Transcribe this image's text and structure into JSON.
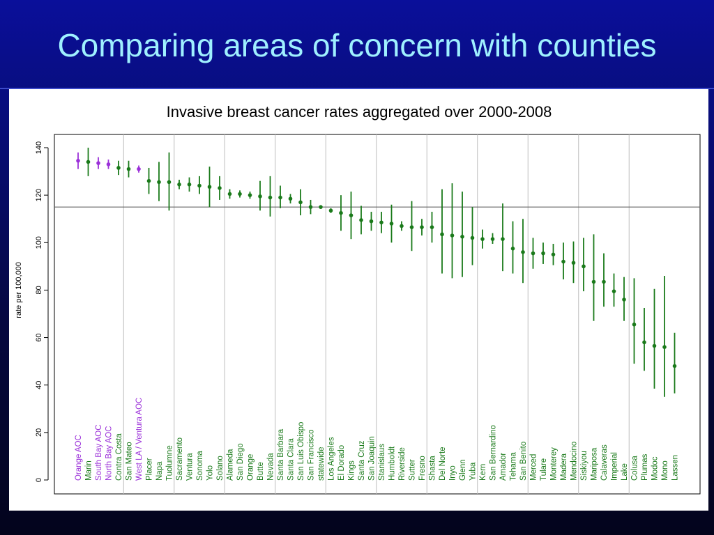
{
  "slide": {
    "title": "Comparing areas of concern with counties"
  },
  "colors": {
    "county": "#1a7a1a",
    "aoc": "#9b30d9",
    "reference_line": "#606060",
    "gridline": "#bdbdbd"
  },
  "chart_data": {
    "type": "scatter",
    "title": "Invasive breast cancer rates aggregated over 2000-2008",
    "xlabel": "",
    "ylabel": "rate per 100,000",
    "ylim": [
      0,
      140
    ],
    "yticks": [
      0,
      20,
      40,
      60,
      80,
      100,
      120,
      140
    ],
    "reference_line_y": 115,
    "grid": "vertical separators between groups",
    "series": [
      {
        "name": "",
        "points": [
          {
            "label": "Orange AOC",
            "y": 134.5,
            "lo": 131,
            "hi": 138,
            "type": "aoc"
          },
          {
            "label": "Marin",
            "y": 134,
            "lo": 128,
            "hi": 140,
            "type": "county"
          },
          {
            "label": "South Bay AOC",
            "y": 133.5,
            "lo": 131,
            "hi": 136,
            "type": "aoc"
          },
          {
            "label": "North Bay AOC",
            "y": 133,
            "lo": 131,
            "hi": 135,
            "type": "aoc"
          },
          {
            "label": "Contra Costa",
            "y": 131.5,
            "lo": 128.5,
            "hi": 134.5,
            "type": "county"
          },
          {
            "label": "San Mateo",
            "y": 131,
            "lo": 127.5,
            "hi": 134.5,
            "type": "county"
          },
          {
            "label": "West LA / Ventura AOC",
            "y": 131,
            "lo": 129.5,
            "hi": 132.5,
            "type": "aoc"
          },
          {
            "label": "Placer",
            "y": 126,
            "lo": 120.5,
            "hi": 131.5,
            "type": "county"
          },
          {
            "label": "Napa",
            "y": 125.5,
            "lo": 117.5,
            "hi": 134,
            "type": "county"
          },
          {
            "label": "Tuolumne",
            "y": 125.5,
            "lo": 113.5,
            "hi": 138,
            "type": "county"
          },
          {
            "label": "Sacramento",
            "y": 124.5,
            "lo": 122.5,
            "hi": 126.5,
            "type": "county"
          },
          {
            "label": "Ventura",
            "y": 124.5,
            "lo": 121.5,
            "hi": 127.5,
            "type": "county"
          },
          {
            "label": "Sonoma",
            "y": 124,
            "lo": 120.5,
            "hi": 128,
            "type": "county"
          },
          {
            "label": "Yolo",
            "y": 123.5,
            "lo": 115,
            "hi": 132,
            "type": "county"
          },
          {
            "label": "Solano",
            "y": 123,
            "lo": 118,
            "hi": 128,
            "type": "county"
          },
          {
            "label": "Alameda",
            "y": 120.5,
            "lo": 118.5,
            "hi": 122.5,
            "type": "county"
          },
          {
            "label": "San Diego",
            "y": 120.5,
            "lo": 119,
            "hi": 122,
            "type": "county"
          },
          {
            "label": "Orange",
            "y": 120,
            "lo": 118.5,
            "hi": 121.5,
            "type": "county"
          },
          {
            "label": "Butte",
            "y": 119.5,
            "lo": 113.5,
            "hi": 126,
            "type": "county"
          },
          {
            "label": "Nevada",
            "y": 119,
            "lo": 111,
            "hi": 128,
            "type": "county"
          },
          {
            "label": "Santa Barbara",
            "y": 119,
            "lo": 114.5,
            "hi": 124,
            "type": "county"
          },
          {
            "label": "Santa Clara",
            "y": 118.5,
            "lo": 116.5,
            "hi": 120.5,
            "type": "county"
          },
          {
            "label": "San Luis Obispo",
            "y": 117,
            "lo": 111.5,
            "hi": 122.5,
            "type": "county"
          },
          {
            "label": "San Francisco",
            "y": 115,
            "lo": 112,
            "hi": 118,
            "type": "county"
          },
          {
            "label": "statewide",
            "y": 115,
            "lo": 114.5,
            "hi": 115.5,
            "type": "county"
          },
          {
            "label": "Los Angeles",
            "y": 113.5,
            "lo": 112.5,
            "hi": 114.5,
            "type": "county"
          },
          {
            "label": "El Dorado",
            "y": 112.5,
            "lo": 105,
            "hi": 120,
            "type": "county"
          },
          {
            "label": "Kings",
            "y": 111.5,
            "lo": 101.5,
            "hi": 121.5,
            "type": "county"
          },
          {
            "label": "Santa Cruz",
            "y": 109.5,
            "lo": 103.5,
            "hi": 115.5,
            "type": "county"
          },
          {
            "label": "San Joaquin",
            "y": 109,
            "lo": 105,
            "hi": 113,
            "type": "county"
          },
          {
            "label": "Stanislaus",
            "y": 108.5,
            "lo": 104,
            "hi": 113,
            "type": "county"
          },
          {
            "label": "Humboldt",
            "y": 108,
            "lo": 100,
            "hi": 116,
            "type": "county"
          },
          {
            "label": "Riverside",
            "y": 107,
            "lo": 105,
            "hi": 109,
            "type": "county"
          },
          {
            "label": "Sutter",
            "y": 106.5,
            "lo": 96.5,
            "hi": 117.5,
            "type": "county"
          },
          {
            "label": "Fresno",
            "y": 106.5,
            "lo": 103,
            "hi": 110,
            "type": "county"
          },
          {
            "label": "Shasta",
            "y": 106.5,
            "lo": 100,
            "hi": 113,
            "type": "county"
          },
          {
            "label": "Del Norte",
            "y": 103.5,
            "lo": 87,
            "hi": 122.5,
            "type": "county"
          },
          {
            "label": "Inyo",
            "y": 103,
            "lo": 85,
            "hi": 125,
            "type": "county"
          },
          {
            "label": "Glenn",
            "y": 102.5,
            "lo": 85.5,
            "hi": 121.5,
            "type": "county"
          },
          {
            "label": "Yuba",
            "y": 102,
            "lo": 90.5,
            "hi": 115,
            "type": "county"
          },
          {
            "label": "Kern",
            "y": 101.5,
            "lo": 97.5,
            "hi": 105.5,
            "type": "county"
          },
          {
            "label": "San Bernardino",
            "y": 101.5,
            "lo": 99.5,
            "hi": 104,
            "type": "county"
          },
          {
            "label": "Amador",
            "y": 101.5,
            "lo": 88,
            "hi": 116.5,
            "type": "county"
          },
          {
            "label": "Tehama",
            "y": 97.5,
            "lo": 87,
            "hi": 109,
            "type": "county"
          },
          {
            "label": "San Benito",
            "y": 96,
            "lo": 83,
            "hi": 110,
            "type": "county"
          },
          {
            "label": "Merced",
            "y": 95.5,
            "lo": 89,
            "hi": 102,
            "type": "county"
          },
          {
            "label": "Tulare",
            "y": 95.5,
            "lo": 91,
            "hi": 100,
            "type": "county"
          },
          {
            "label": "Monterey",
            "y": 95,
            "lo": 90.5,
            "hi": 99.5,
            "type": "county"
          },
          {
            "label": "Madera",
            "y": 92,
            "lo": 84.5,
            "hi": 100,
            "type": "county"
          },
          {
            "label": "Mendocino",
            "y": 91.5,
            "lo": 83,
            "hi": 100.5,
            "type": "county"
          },
          {
            "label": "Siskiyou",
            "y": 90,
            "lo": 79.5,
            "hi": 102,
            "type": "county"
          },
          {
            "label": "Mariposa",
            "y": 83.5,
            "lo": 67,
            "hi": 103.5,
            "type": "county"
          },
          {
            "label": "Calaveras",
            "y": 83.5,
            "lo": 73,
            "hi": 95.5,
            "type": "county"
          },
          {
            "label": "Imperial",
            "y": 79.5,
            "lo": 73,
            "hi": 87,
            "type": "county"
          },
          {
            "label": "Lake",
            "y": 76,
            "lo": 67,
            "hi": 85.5,
            "type": "county"
          },
          {
            "label": "Colusa",
            "y": 65.5,
            "lo": 49,
            "hi": 85,
            "type": "county"
          },
          {
            "label": "Plumas",
            "y": 58,
            "lo": 46,
            "hi": 72.5,
            "type": "county"
          },
          {
            "label": "Modoc",
            "y": 56.5,
            "lo": 38.5,
            "hi": 80.5,
            "type": "county"
          },
          {
            "label": "Mono",
            "y": 56,
            "lo": 35,
            "hi": 86,
            "type": "county"
          },
          {
            "label": "Lassen",
            "y": 48,
            "lo": 36.5,
            "hi": 62,
            "type": "county"
          }
        ]
      }
    ]
  }
}
